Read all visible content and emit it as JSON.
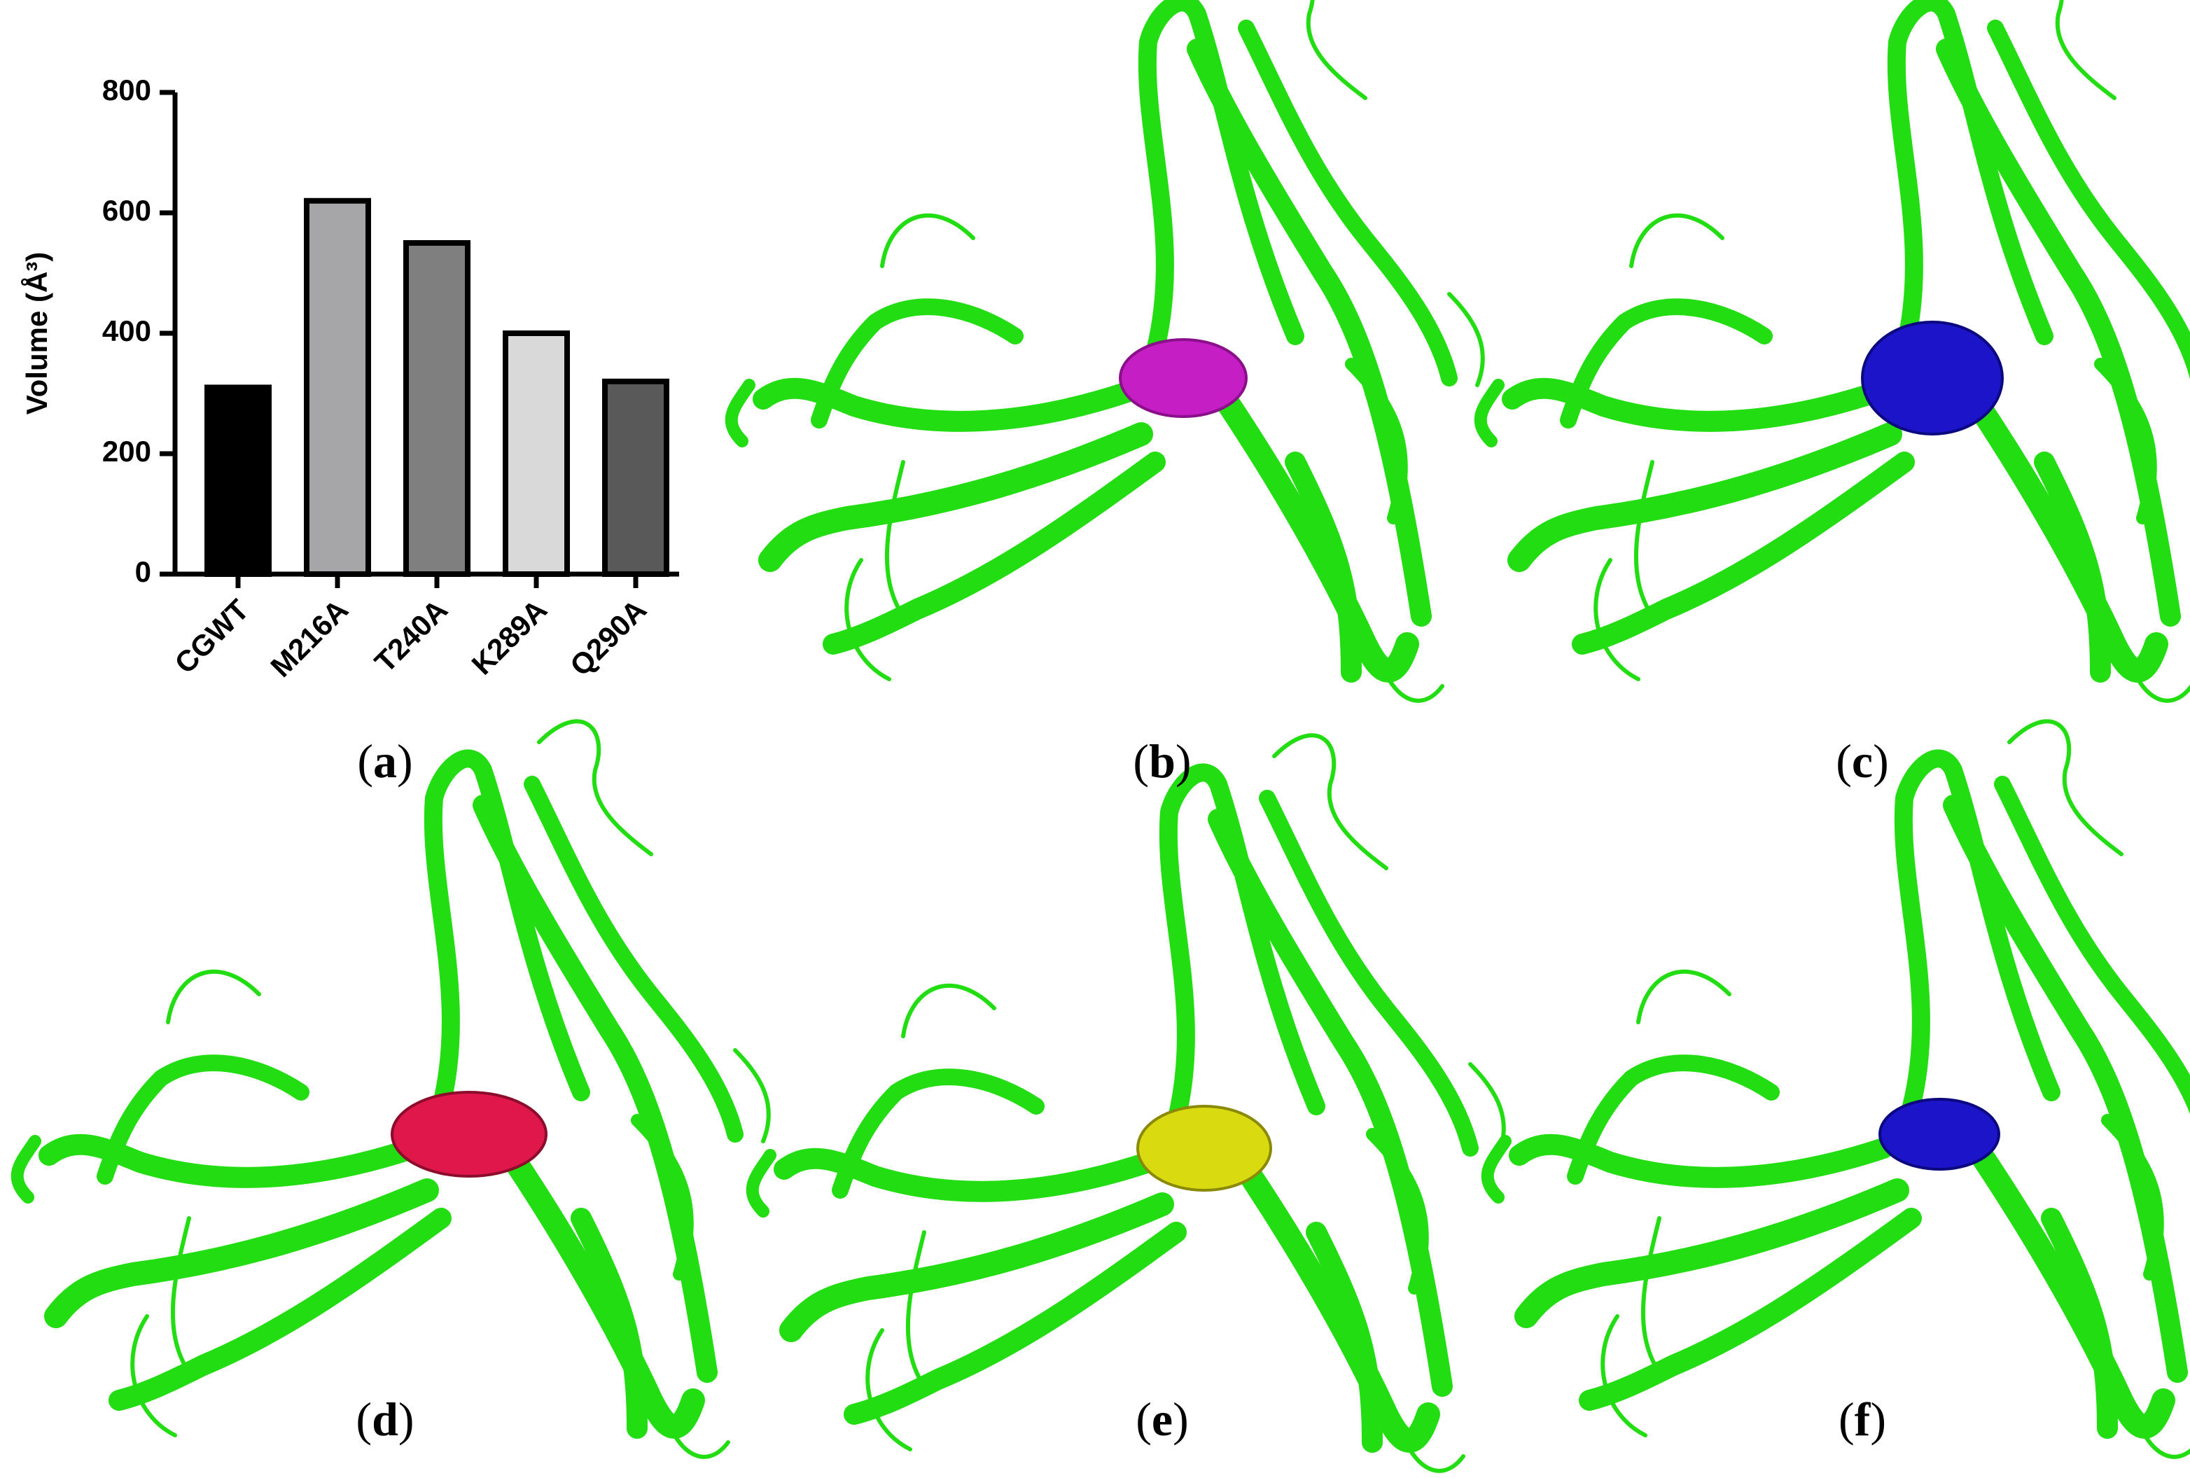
{
  "chart_data": {
    "type": "bar",
    "y_label": "Volume (Å³)",
    "categories": [
      "CGWT",
      "M216A",
      "T240A",
      "K289A",
      "Q290A"
    ],
    "values": [
      310,
      620,
      550,
      400,
      320
    ],
    "colors": [
      "#000000",
      "#a6a6a8",
      "#7f7f7f",
      "#d9d9d9",
      "#595959"
    ],
    "ylim": [
      0,
      800
    ],
    "yticks": [
      0,
      200,
      400,
      600,
      800
    ]
  },
  "panel_labels": [
    "(a)",
    "(b)",
    "(c)",
    "(d)",
    "(e)",
    "(f)"
  ]
}
